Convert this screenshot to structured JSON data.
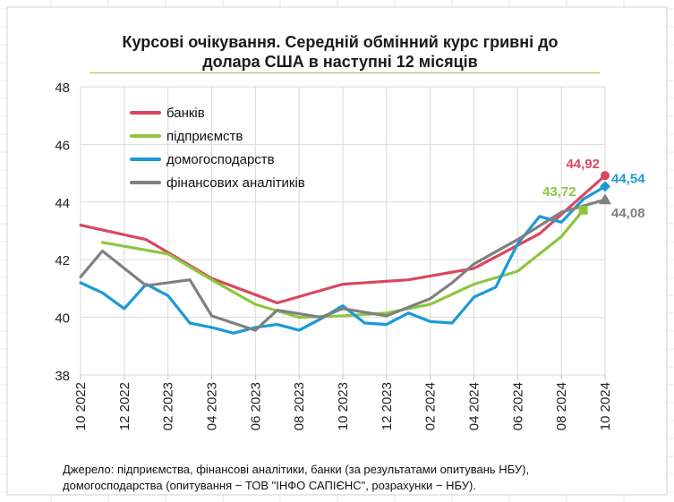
{
  "chart_data": {
    "type": "line",
    "title": "Курсові очікування. Середній обмінний курс гривні до долара США в наступні 12 місяців",
    "title_lines": [
      "Курсові очікування. Середній обмінний курс гривні до",
      "долара США в наступні 12 місяців"
    ],
    "ylim": [
      38,
      48
    ],
    "yticks": [
      38,
      40,
      42,
      44,
      46,
      48
    ],
    "xticks": [
      "10 2022",
      "12 2022",
      "02 2023",
      "04 2023",
      "06 2023",
      "08 2023",
      "10 2023",
      "12 2023",
      "02 2024",
      "04 2024",
      "06 2024",
      "08 2024",
      "10 2024"
    ],
    "x_months": [
      "10 2022",
      "11 2022",
      "12 2022",
      "01 2023",
      "02 2023",
      "03 2023",
      "04 2023",
      "05 2023",
      "06 2023",
      "07 2023",
      "08 2023",
      "09 2023",
      "10 2023",
      "11 2023",
      "12 2023",
      "01 2024",
      "02 2024",
      "03 2024",
      "04 2024",
      "05 2024",
      "06 2024",
      "07 2024",
      "08 2024",
      "09 2024",
      "10 2024"
    ],
    "series": [
      {
        "name": "банків",
        "color": "#d9485f",
        "marker": "circle",
        "x": [
          0,
          3,
          4,
          6,
          9,
          12,
          15,
          18,
          21,
          24
        ],
        "values": [
          43.2,
          42.7,
          42.25,
          41.35,
          40.5,
          41.15,
          41.3,
          41.7,
          42.9,
          44.92
        ],
        "end_label": "44,92"
      },
      {
        "name": "підприємств",
        "color": "#8cc63f",
        "marker": "square",
        "x": [
          1,
          4,
          6,
          8,
          10,
          12,
          14,
          16,
          18,
          20,
          22,
          23
        ],
        "values": [
          42.6,
          42.2,
          41.3,
          40.45,
          40.0,
          40.05,
          40.15,
          40.45,
          41.15,
          41.6,
          42.8,
          43.72
        ],
        "end_label": "43,72"
      },
      {
        "name": "домогосподарств",
        "color": "#1a9ad6",
        "marker": "diamond",
        "x": [
          0,
          1,
          2,
          3,
          4,
          5,
          6,
          7,
          8,
          9,
          10,
          11,
          12,
          13,
          14,
          15,
          16,
          17,
          18,
          19,
          20,
          21,
          22,
          23,
          24
        ],
        "values": [
          41.2,
          40.85,
          40.3,
          41.15,
          40.75,
          39.8,
          39.65,
          39.45,
          39.65,
          39.75,
          39.55,
          39.95,
          40.4,
          39.8,
          39.75,
          40.15,
          39.85,
          39.8,
          40.7,
          41.05,
          42.55,
          43.5,
          43.3,
          44.1,
          44.54
        ],
        "end_label": "44,54"
      },
      {
        "name": "фінансових аналітиків",
        "color": "#808080",
        "marker": "triangle",
        "x": [
          0,
          1,
          3,
          5,
          6,
          8,
          9,
          11,
          12,
          14,
          16,
          17,
          18,
          20,
          22,
          24
        ],
        "values": [
          41.4,
          42.3,
          41.1,
          41.3,
          40.05,
          39.55,
          40.25,
          40.0,
          40.3,
          40.05,
          40.65,
          41.2,
          41.85,
          42.7,
          43.65,
          44.08
        ],
        "end_label": "44,08"
      }
    ],
    "legend_position": "top-left",
    "source_lines": [
      "Джерело: підприємства, фінансові аналітики, банки (за результатами опитувань НБУ),",
      "домогосподарства (опитування − ТОВ \"ІНФО САПІЄНС\", розрахунки − НБУ)."
    ]
  }
}
